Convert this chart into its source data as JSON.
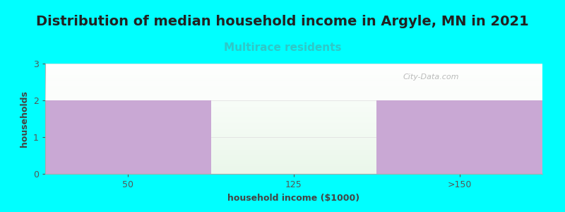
{
  "title": "Distribution of median household income in Argyle, MN in 2021",
  "subtitle": "Multirace residents",
  "subtitle_color": "#2ec8c8",
  "background_color": "#00ffff",
  "plot_bg_top": "#f0f8f0",
  "plot_bg_bottom": "#e8f4e8",
  "xlabel": "household income ($1000)",
  "ylabel": "households",
  "categories": [
    "50",
    "125",
    ">150"
  ],
  "values": [
    2,
    0,
    2
  ],
  "bar_colors": [
    "#c9a8d4",
    "#d4eac4",
    "#c9a8d4"
  ],
  "ylim": [
    0,
    3
  ],
  "yticks": [
    0,
    1,
    2,
    3
  ],
  "watermark": "City-Data.com",
  "title_fontsize": 14,
  "subtitle_fontsize": 11,
  "axis_label_fontsize": 9,
  "tick_fontsize": 9
}
